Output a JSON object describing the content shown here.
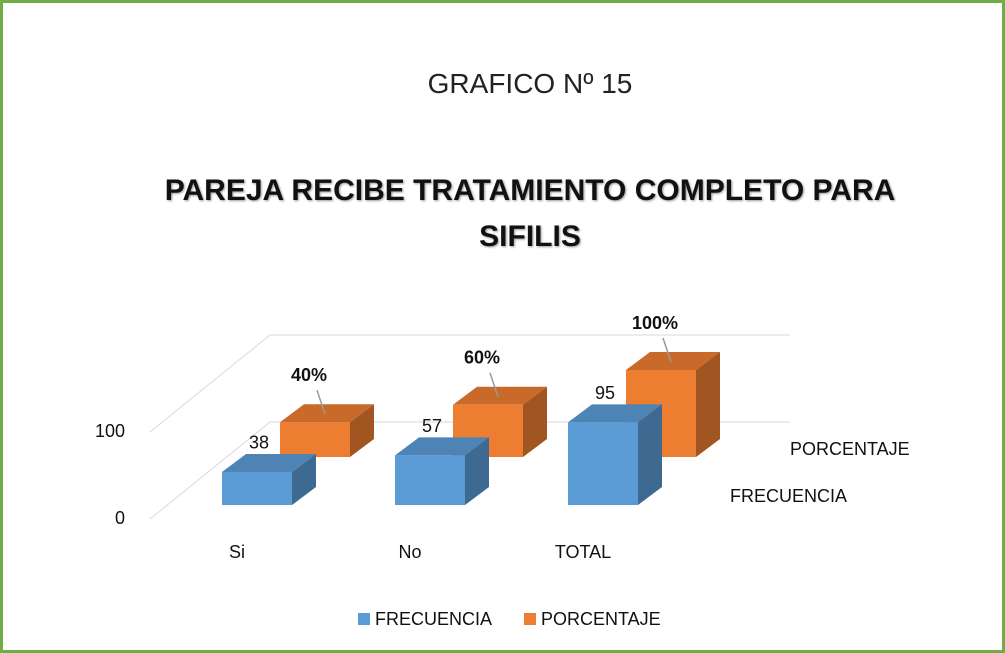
{
  "heading": "GRAFICO Nº 15",
  "chart_data": {
    "type": "bar3d",
    "title": "PAREJA RECIBE TRATAMIENTO COMPLETO PARA SIFILIS",
    "categories": [
      "Si",
      "No",
      "TOTAL"
    ],
    "series": [
      {
        "name": "FRECUENCIA",
        "color": "#5b9bd5",
        "values": [
          38,
          57,
          95
        ]
      },
      {
        "name": "PORCENTAJE",
        "color": "#ed7d31",
        "values": [
          40,
          60,
          100
        ],
        "value_labels": [
          "40%",
          "60%",
          "100%"
        ]
      }
    ],
    "ylim": [
      0,
      100
    ],
    "yticks": [
      0,
      100
    ],
    "grid": true,
    "legend": "bottom"
  }
}
